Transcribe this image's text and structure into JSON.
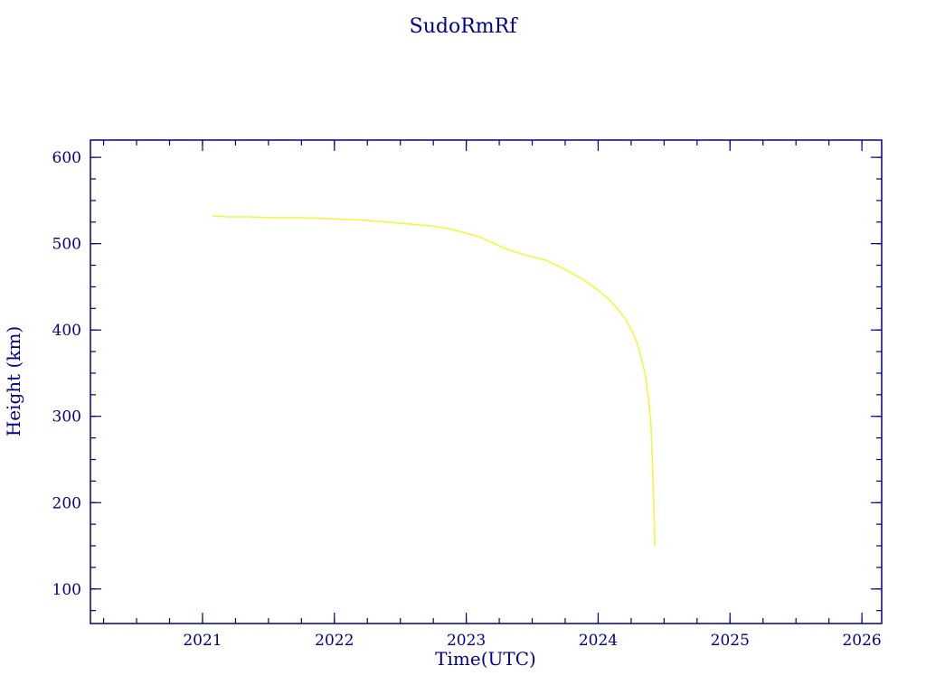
{
  "page": {
    "background_color": "#ffffff",
    "accent_color": "#00008b"
  },
  "chart_data": {
    "type": "line",
    "title": "SudoRmRf",
    "xlabel": "Time(UTC)",
    "ylabel": "Height (km)",
    "xlim": [
      2020.15,
      2026.15
    ],
    "ylim": [
      60,
      620
    ],
    "x_ticks": [
      2021,
      2022,
      2023,
      2024,
      2025,
      2026
    ],
    "y_ticks": [
      100,
      200,
      300,
      400,
      500,
      600
    ],
    "x_minor_step": 0.25,
    "y_minor_step": 25,
    "grid": false,
    "legend": "none",
    "axis_color": "#00008b",
    "text_color": "#00008b",
    "line_color": "#f5f542",
    "series": [
      {
        "name": "height",
        "x": [
          2021.08,
          2021.2,
          2021.35,
          2021.55,
          2021.75,
          2021.95,
          2022.1,
          2022.25,
          2022.4,
          2022.55,
          2022.7,
          2022.85,
          2023.0,
          2023.1,
          2023.2,
          2023.3,
          2023.4,
          2023.5,
          2023.6,
          2023.7,
          2023.8,
          2023.9,
          2024.0,
          2024.08,
          2024.15,
          2024.21,
          2024.26,
          2024.3,
          2024.33,
          2024.36,
          2024.38,
          2024.4,
          2024.41,
          2024.42,
          2024.43
        ],
        "y": [
          532,
          531,
          531,
          530,
          530,
          529,
          528,
          527,
          525,
          523,
          521,
          518,
          512,
          508,
          501,
          494,
          489,
          485,
          481,
          474,
          466,
          457,
          446,
          436,
          424,
          412,
          398,
          383,
          366,
          345,
          322,
          292,
          255,
          205,
          150
        ]
      }
    ]
  }
}
